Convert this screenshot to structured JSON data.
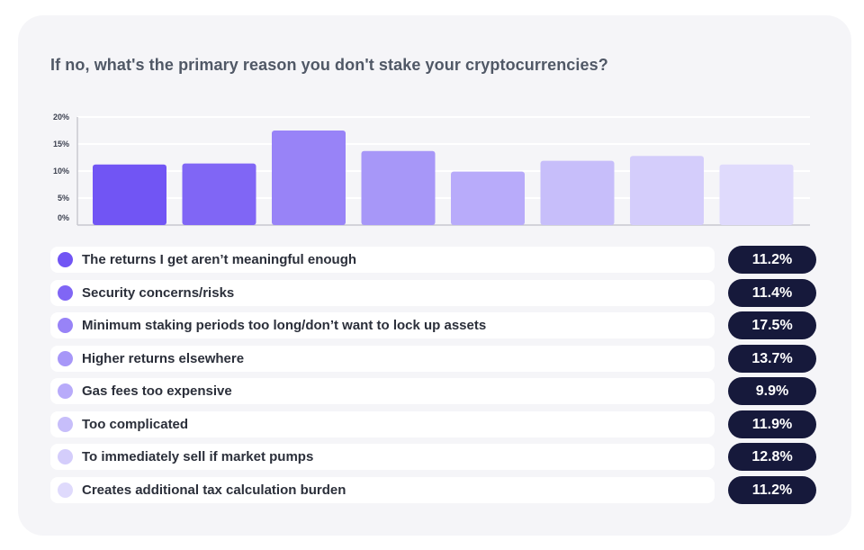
{
  "title": "If no, what's the primary reason you don't stake your cryptocurrencies?",
  "chart_data": {
    "type": "bar",
    "title": "If no, what's the primary reason you don't stake your cryptocurrencies?",
    "categories": [
      "The returns I get aren’t meaningful enough",
      "Security concerns/risks",
      "Minimum staking periods too long/don’t want to lock up assets",
      "Higher returns elsewhere",
      "Gas fees too expensive",
      "Too complicated",
      "To immediately sell if market pumps",
      "Creates additional tax calculation burden"
    ],
    "values": [
      11.2,
      11.4,
      17.5,
      13.7,
      9.9,
      11.9,
      12.8,
      11.2
    ],
    "value_labels": [
      "11.2%",
      "11.4%",
      "17.5%",
      "13.7%",
      "9.9%",
      "11.9%",
      "12.8%",
      "11.2%"
    ],
    "y_ticks": [
      0,
      5,
      10,
      15,
      20
    ],
    "y_tick_labels": [
      "0%",
      "5%",
      "10%",
      "15%",
      "20%"
    ],
    "ylim": [
      0,
      20
    ],
    "xlabel": "",
    "ylabel": "",
    "grid": true,
    "legend_position": "below",
    "colors": [
      "#7155f4",
      "#8066f5",
      "#9883f7",
      "#a797f8",
      "#b8abfa",
      "#c7befa",
      "#d4cdfb",
      "#dfdafc"
    ]
  },
  "style": {
    "card_background": "#f5f5f8",
    "value_pill_background": "#16193b",
    "gridline_color": "#ffffff",
    "axis_color": "#c8c8d0"
  }
}
